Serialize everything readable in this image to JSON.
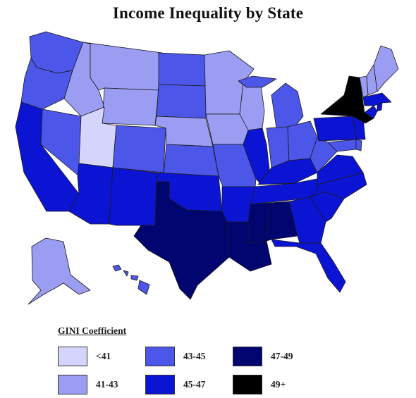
{
  "title": "Income Inequality by State",
  "legend": {
    "title": "GINI Coefficient",
    "items": [
      {
        "label": "<41",
        "color": "#d5d5fc"
      },
      {
        "label": "41-43",
        "color": "#9a9df1"
      },
      {
        "label": "43-45",
        "color": "#4c56e8"
      },
      {
        "label": "45-47",
        "color": "#0c14d3"
      },
      {
        "label": "47-49",
        "color": "#000570"
      },
      {
        "label": "49+",
        "color": "#000000"
      }
    ]
  },
  "states": {
    "WA": "43-45",
    "OR": "43-45",
    "CA": "45-47",
    "NV": "43-45",
    "ID": "41-43",
    "MT": "41-43",
    "WY": "41-43",
    "UT": "<41",
    "AZ": "45-47",
    "CO": "43-45",
    "NM": "45-47",
    "ND": "43-45",
    "SD": "43-45",
    "NE": "41-43",
    "KS": "43-45",
    "OK": "45-47",
    "TX": "47-49",
    "MN": "41-43",
    "IA": "41-43",
    "MO": "43-45",
    "AR": "45-47",
    "LA": "47-49",
    "WI": "41-43",
    "IL": "45-47",
    "MI": "43-45",
    "IN": "43-45",
    "OH": "43-45",
    "KY": "45-47",
    "TN": "45-47",
    "MS": "47-49",
    "AL": "47-49",
    "GA": "45-47",
    "FL": "45-47",
    "SC": "45-47",
    "NC": "45-47",
    "VA": "45-47",
    "WV": "43-45",
    "PA": "45-47",
    "NY": "49+",
    "NJ": "45-47",
    "DE": "43-45",
    "MD": "43-45",
    "CT": "45-47",
    "RI": "45-47",
    "MA": "45-47",
    "VT": "41-43",
    "NH": "41-43",
    "ME": "41-43",
    "AK": "41-43",
    "HI": "43-45"
  }
}
